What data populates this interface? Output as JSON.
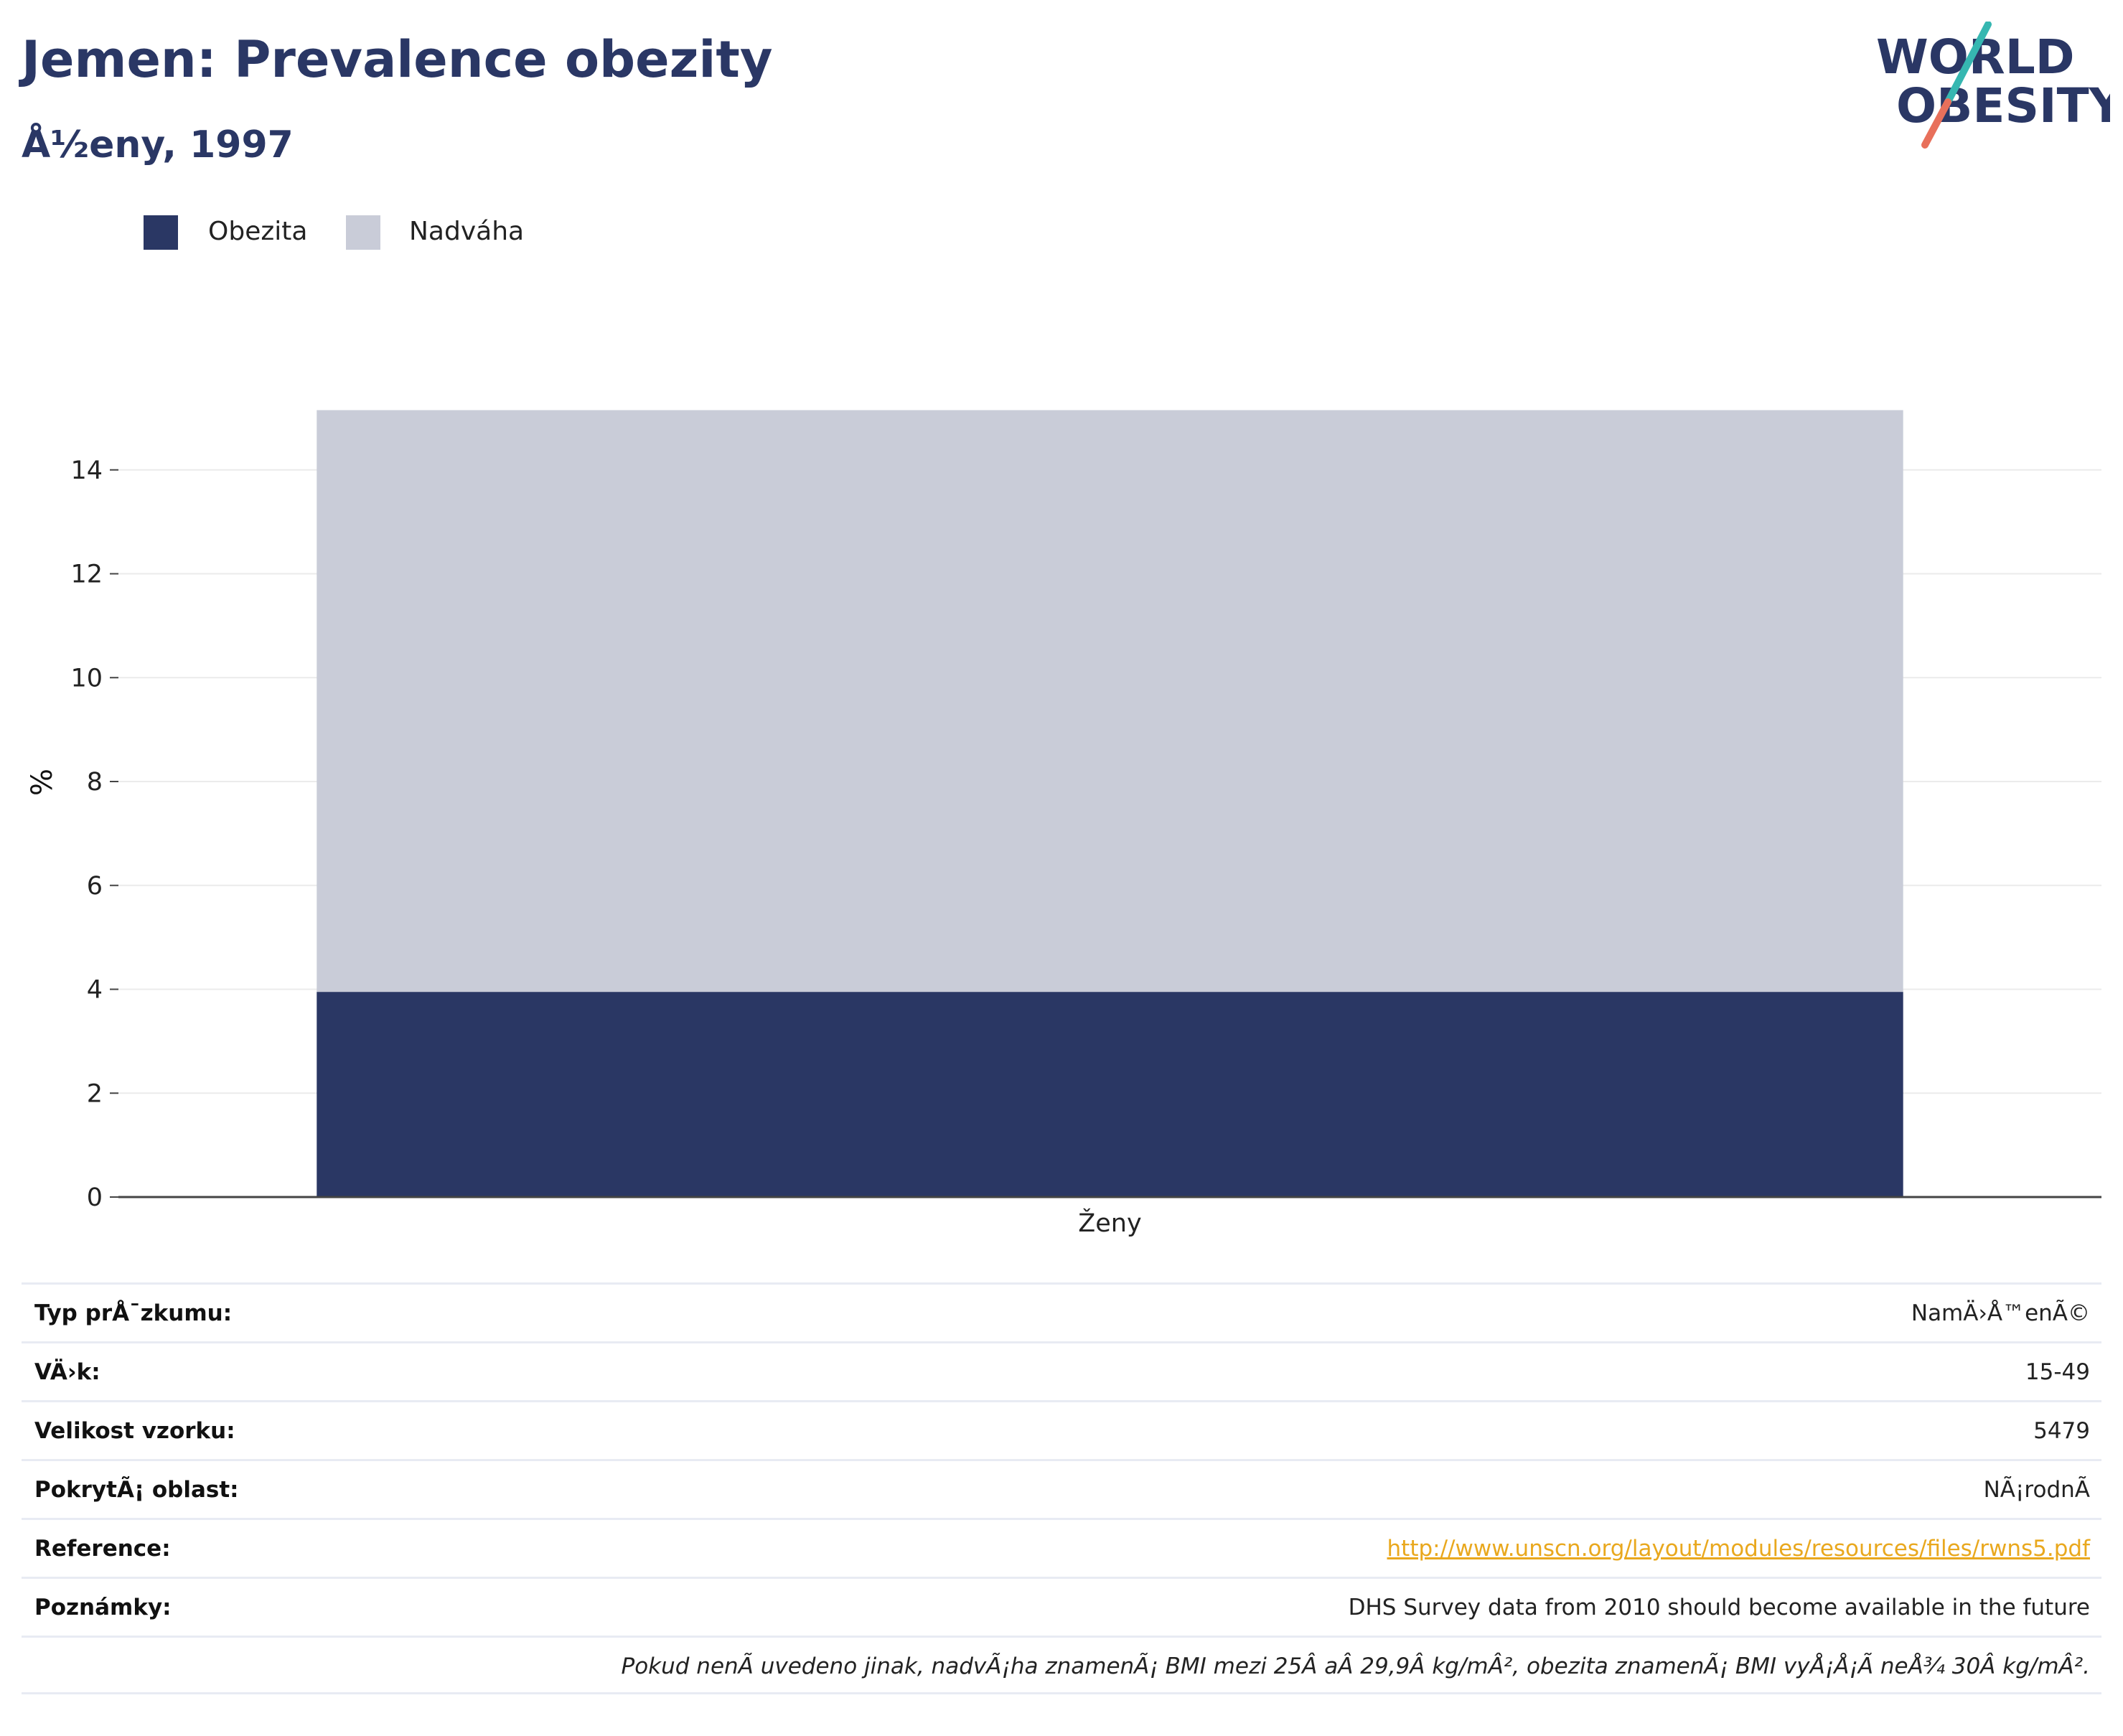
{
  "header": {
    "title": "Jemen: Prevalence obezity",
    "subtitle": "Å½eny, 1997",
    "logo_text_line1": "WORLD",
    "logo_text_line2": "OBESITY"
  },
  "legend": {
    "items": [
      {
        "label": "Obezita",
        "color": "#2a3764"
      },
      {
        "label": "Nadváha",
        "color": "#c9ccd8"
      }
    ]
  },
  "chart_data": {
    "type": "bar",
    "stacked": true,
    "categories": [
      "Ženy"
    ],
    "series": [
      {
        "name": "Obezita",
        "values": [
          3.95
        ],
        "color": "#2a3764"
      },
      {
        "name": "Nadváha",
        "values": [
          11.2
        ],
        "color": "#c9ccd8"
      }
    ],
    "title": "Jemen: Prevalence obezity",
    "subtitle": "Å½eny, 1997",
    "xlabel": "",
    "ylabel": "%",
    "ylim": [
      0,
      16
    ],
    "yticks": [
      0,
      2,
      4,
      6,
      8,
      10,
      12,
      14
    ],
    "grid": true,
    "legend_position": "top-left"
  },
  "info": {
    "rows": [
      {
        "key": "Typ prÅ¯zkumu:",
        "value": "NamÄ›Å™enÃ©"
      },
      {
        "key": "VÄ›k:",
        "value": "15-49"
      },
      {
        "key": "Velikost vzorku:",
        "value": "5479"
      },
      {
        "key": "PokrytÃ¡ oblast:",
        "value": "NÃ¡rodnÃ"
      },
      {
        "key": "Reference:",
        "value": "http://www.unscn.org/layout/modules/resources/files/rwns5.pdf"
      },
      {
        "key": "Poznámky:",
        "value": "DHS Survey data from 2010 should become available in the future"
      }
    ],
    "footnote": "Pokud nenÃ uvedeno jinak, nadvÃ¡ha znamenÃ¡ BMI mezi 25Â aÂ 29,9Â kg/mÂ², obezita znamenÃ¡ BMI vyÅ¡Å¡Ã neÅ¾ 30Â kg/mÂ²."
  }
}
